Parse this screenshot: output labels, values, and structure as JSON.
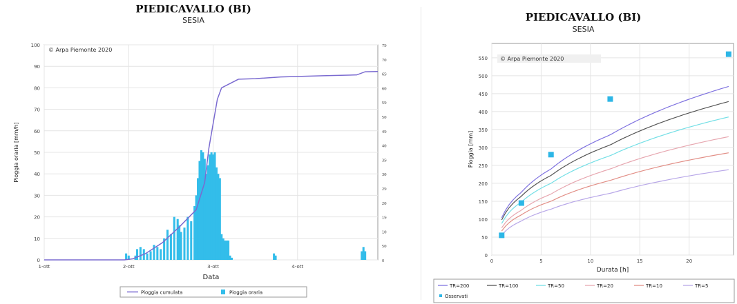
{
  "charts_meta": {
    "left": {
      "title": "PIEDICAVALLO (BI)",
      "subtitle": "SESIA"
    },
    "right": {
      "title": "PIEDICAVALLO (BI)",
      "subtitle": "SESIA"
    }
  },
  "chart_data": [
    {
      "type": "bar",
      "title": "PIEDICAVALLO (BI)",
      "subtitle": "SESIA",
      "watermark": "© Arpa Piemonte 2020",
      "xlabel": "Data",
      "ylabel": "Pioggia oraria [mm/h]",
      "y2label": "Pioggia cumulata [mm]",
      "x_range_days": [
        0,
        3.95
      ],
      "x_ticks": [
        {
          "v": 0,
          "label": "1-ott"
        },
        {
          "v": 1,
          "label": "2-ott"
        },
        {
          "v": 2,
          "label": "3-ott"
        },
        {
          "v": 3,
          "label": "4-ott"
        }
      ],
      "ylim": [
        0,
        100
      ],
      "y_ticks": [
        0,
        10,
        20,
        30,
        40,
        50,
        60,
        70,
        80,
        90,
        100
      ],
      "y2lim": [
        0,
        7500
      ],
      "y2_ticks": [
        0,
        500,
        1000,
        1500,
        2000,
        2500,
        3000,
        3500,
        4000,
        4500,
        5000,
        5500,
        6000,
        6500,
        7000,
        7500
      ],
      "grid": true,
      "legend_position": "bottom",
      "legend": [
        "Pioggia cumulata",
        "Pioggia oraria"
      ],
      "series_colors": {
        "Pioggia cumulata": "#7a6ad0",
        "Pioggia oraria": "#33bdea"
      },
      "bars_label": "Pioggia oraria",
      "bars_t": [
        0.97,
        1.0,
        1.08,
        1.1,
        1.14,
        1.18,
        1.22,
        1.26,
        1.3,
        1.34,
        1.38,
        1.42,
        1.46,
        1.5,
        1.54,
        1.58,
        1.6,
        1.62,
        1.66,
        1.7,
        1.74,
        1.78,
        1.8,
        1.82,
        1.84,
        1.86,
        1.88,
        1.9,
        1.92,
        1.94,
        1.96,
        1.98,
        2.0,
        2.02,
        2.04,
        2.06,
        2.08,
        2.1,
        2.12,
        2.14,
        2.16,
        2.18,
        2.2,
        2.22,
        2.72,
        2.74,
        3.76,
        3.78,
        3.8
      ],
      "bars_v": [
        3,
        2,
        2,
        5,
        6,
        5,
        3,
        4,
        7,
        6,
        5,
        10,
        14,
        12,
        20,
        19,
        16,
        13,
        15,
        20,
        18,
        25,
        30,
        38,
        46,
        51,
        50,
        47,
        40,
        44,
        49,
        50,
        49,
        50,
        43,
        40,
        38,
        12,
        10,
        9,
        9,
        9,
        2,
        1,
        3,
        2,
        4,
        6,
        4
      ],
      "line_label": "Pioggia cumulata",
      "line_t": [
        0,
        0.95,
        1.05,
        1.2,
        1.4,
        1.6,
        1.8,
        1.9,
        1.95,
        2.05,
        2.1,
        2.3,
        2.5,
        2.8,
        3.3,
        3.7,
        3.8,
        3.95
      ],
      "line_v": [
        0,
        0,
        40,
        220,
        600,
        1150,
        1750,
        2700,
        3900,
        5600,
        6000,
        6300,
        6320,
        6380,
        6420,
        6450,
        6560,
        6570
      ]
    },
    {
      "type": "line",
      "title": "PIEDICAVALLO (BI)",
      "subtitle": "SESIA",
      "watermark": "© Arpa Piemonte 2020",
      "xlabel": "Durata [h]",
      "ylabel": "Pioggia [mm]",
      "xlim": [
        0,
        24.5
      ],
      "x_ticks": [
        0,
        5,
        10,
        15,
        20
      ],
      "ylim": [
        0,
        590
      ],
      "y_ticks": [
        0,
        50,
        100,
        150,
        200,
        250,
        300,
        350,
        400,
        450,
        500,
        550
      ],
      "grid": true,
      "legend_position": "bottom",
      "durations": [
        1,
        3,
        6,
        12,
        24
      ],
      "series": [
        {
          "name": "TR=200",
          "color": "#7f72e0",
          "values": [
            104,
            175,
            240,
            335,
            470
          ]
        },
        {
          "name": "TR=100",
          "color": "#555555",
          "values": [
            98,
            164,
            222,
            307,
            428
          ]
        },
        {
          "name": "TR=50",
          "color": "#73dfe6",
          "values": [
            88,
            148,
            200,
            277,
            385
          ]
        },
        {
          "name": "TR=20",
          "color": "#e7a7b0",
          "values": [
            76,
            125,
            170,
            240,
            330
          ]
        },
        {
          "name": "TR=10",
          "color": "#e28f87",
          "values": [
            67,
            112,
            150,
            208,
            285
          ]
        },
        {
          "name": "TR=5",
          "color": "#b8a7e8",
          "values": [
            55,
            95,
            128,
            172,
            238
          ]
        }
      ],
      "observed": {
        "name": "Osservati",
        "color": "#2db6e6",
        "x": [
          1,
          3,
          6,
          12,
          24
        ],
        "y": [
          55,
          145,
          280,
          435,
          560
        ]
      }
    }
  ]
}
